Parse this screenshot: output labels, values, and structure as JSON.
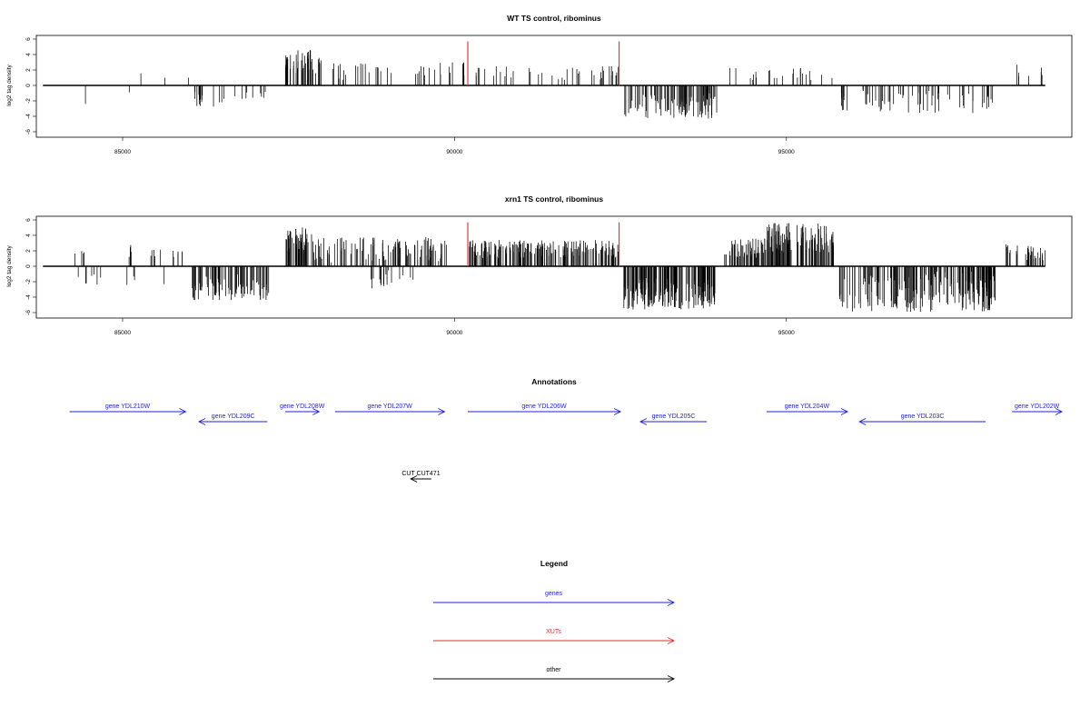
{
  "chart_data": [
    {
      "type": "bar",
      "title": "WT TS control, ribominus",
      "ylabel": "log2 tag density",
      "xlim": [
        83700,
        99300
      ],
      "ylim": [
        -6,
        6
      ],
      "xticks": [
        85000,
        90000,
        95000
      ],
      "yticks": [
        6,
        4,
        2,
        0,
        -2,
        -4,
        -6
      ],
      "grid": false,
      "baseline": {
        "from": 83800,
        "to": 98900
      },
      "highlight_lines": [
        {
          "x": 90200,
          "y": 5.7,
          "color": "#e32b2b"
        },
        {
          "x": 92480,
          "y": 5.7,
          "color": "#e32b2b"
        }
      ],
      "segments": [
        {
          "from": 84420,
          "to": 84460,
          "sign": -1,
          "density": 1,
          "amp": [
            2.4,
            2.4
          ]
        },
        {
          "from": 85080,
          "to": 85120,
          "sign": -1,
          "density": 1,
          "amp": [
            0.9,
            0.9
          ]
        },
        {
          "from": 85250,
          "to": 85300,
          "sign": 1,
          "density": 2,
          "amp": [
            1.2,
            2.4
          ]
        },
        {
          "from": 85620,
          "to": 85650,
          "sign": 1,
          "density": 1,
          "amp": [
            1.0,
            1.0
          ]
        },
        {
          "from": 85980,
          "to": 86000,
          "sign": 1,
          "density": 1,
          "amp": [
            1.0,
            1.0
          ]
        },
        {
          "from": 86080,
          "to": 86650,
          "sign": -1,
          "density": 0.028,
          "amp": [
            0.8,
            3.0
          ]
        },
        {
          "from": 86650,
          "to": 87200,
          "sign": -1,
          "density": 0.016,
          "amp": [
            0.6,
            1.8
          ]
        },
        {
          "from": 87450,
          "to": 87600,
          "sign": 1,
          "density": 0.09,
          "amp": [
            2.0,
            4.0
          ]
        },
        {
          "from": 87600,
          "to": 87850,
          "sign": 1,
          "density": 0.09,
          "amp": [
            1.5,
            4.6
          ]
        },
        {
          "from": 87850,
          "to": 88000,
          "sign": 1,
          "density": 0.06,
          "amp": [
            1.0,
            3.6
          ]
        },
        {
          "from": 88100,
          "to": 90150,
          "sign": 1,
          "density": 0.018,
          "amp": [
            0.6,
            3.0
          ]
        },
        {
          "from": 90100,
          "to": 90150,
          "sign": 1,
          "density": 1,
          "amp": [
            2.8,
            2.8
          ]
        },
        {
          "from": 90300,
          "to": 92300,
          "sign": 1,
          "density": 0.016,
          "amp": [
            0.6,
            2.5
          ]
        },
        {
          "from": 92300,
          "to": 92470,
          "sign": 1,
          "density": 0.04,
          "amp": [
            1.0,
            2.5
          ]
        },
        {
          "from": 92550,
          "to": 93950,
          "sign": -1,
          "density": 0.07,
          "amp": [
            1.0,
            4.3
          ]
        },
        {
          "from": 94050,
          "to": 95720,
          "sign": 1,
          "density": 0.014,
          "amp": [
            0.6,
            2.3
          ]
        },
        {
          "from": 95800,
          "to": 96400,
          "sign": -1,
          "density": 0.03,
          "amp": [
            0.6,
            3.3
          ]
        },
        {
          "from": 96400,
          "to": 98150,
          "sign": -1,
          "density": 0.026,
          "amp": [
            0.5,
            3.6
          ]
        },
        {
          "from": 98300,
          "to": 98900,
          "sign": 1,
          "density": 0.012,
          "amp": [
            1.0,
            2.8
          ]
        }
      ]
    },
    {
      "type": "bar",
      "title": "xrn1 TS control, ribominus",
      "ylabel": "log2 tag density",
      "xlim": [
        83700,
        99300
      ],
      "ylim": [
        -6,
        6
      ],
      "xticks": [
        85000,
        90000,
        95000
      ],
      "yticks": [
        6,
        4,
        2,
        0,
        -2,
        -4,
        -6
      ],
      "grid": false,
      "baseline": {
        "from": 83800,
        "to": 98900
      },
      "highlight_lines": [
        {
          "x": 90200,
          "y": 5.7,
          "color": "#e32b2b"
        },
        {
          "x": 92480,
          "y": 5.7,
          "color": "#e32b2b"
        }
      ],
      "segments": [
        {
          "from": 84250,
          "to": 84450,
          "sign": 1,
          "density": 0.02,
          "amp": [
            1.0,
            2.0
          ]
        },
        {
          "from": 84250,
          "to": 84700,
          "sign": -1,
          "density": 0.015,
          "amp": [
            0.6,
            2.4
          ]
        },
        {
          "from": 85050,
          "to": 85250,
          "sign": 1,
          "density": 0.02,
          "amp": [
            1.0,
            3.0
          ]
        },
        {
          "from": 85050,
          "to": 85250,
          "sign": -1,
          "density": 0.015,
          "amp": [
            0.8,
            2.6
          ]
        },
        {
          "from": 85350,
          "to": 85650,
          "sign": 1,
          "density": 0.015,
          "amp": [
            0.8,
            2.8
          ]
        },
        {
          "from": 85600,
          "to": 85650,
          "sign": -1,
          "density": 1,
          "amp": [
            2.3,
            2.3
          ]
        },
        {
          "from": 85750,
          "to": 85900,
          "sign": 1,
          "density": 0.04,
          "amp": [
            1.0,
            2.0
          ]
        },
        {
          "from": 86050,
          "to": 87200,
          "sign": -1,
          "density": 0.07,
          "amp": [
            1.0,
            4.4
          ]
        },
        {
          "from": 87450,
          "to": 87850,
          "sign": 1,
          "density": 0.12,
          "amp": [
            2.0,
            5.1
          ]
        },
        {
          "from": 87850,
          "to": 89900,
          "sign": 1,
          "density": 0.05,
          "amp": [
            0.5,
            3.8
          ]
        },
        {
          "from": 88600,
          "to": 89450,
          "sign": -1,
          "density": 0.02,
          "amp": [
            0.5,
            3.2
          ]
        },
        {
          "from": 90200,
          "to": 92470,
          "sign": 1,
          "density": 0.08,
          "amp": [
            1.0,
            3.4
          ]
        },
        {
          "from": 92550,
          "to": 93950,
          "sign": -1,
          "density": 0.12,
          "amp": [
            1.5,
            5.6
          ]
        },
        {
          "from": 94050,
          "to": 94700,
          "sign": 1,
          "density": 0.08,
          "amp": [
            1.0,
            3.6
          ]
        },
        {
          "from": 94700,
          "to": 95720,
          "sign": 1,
          "density": 0.1,
          "amp": [
            1.5,
            5.6
          ]
        },
        {
          "from": 95800,
          "to": 98150,
          "sign": -1,
          "density": 0.08,
          "amp": [
            0.6,
            5.9
          ]
        },
        {
          "from": 98300,
          "to": 98900,
          "sign": 1,
          "density": 0.05,
          "amp": [
            0.8,
            2.9
          ]
        }
      ]
    }
  ],
  "annotations": {
    "title": "Annotations",
    "genes": [
      {
        "label": "gene YDL210W",
        "from": 84200,
        "to": 85950,
        "strand": "+",
        "row": 0
      },
      {
        "label": "gene YDL209C",
        "from": 86150,
        "to": 87180,
        "strand": "-",
        "row": 1
      },
      {
        "label": "gene YDL208W",
        "from": 87450,
        "to": 87960,
        "strand": "+",
        "row": 0
      },
      {
        "label": "gene YDL207W",
        "from": 88200,
        "to": 89850,
        "strand": "+",
        "row": 0
      },
      {
        "label": "gene YDL206W",
        "from": 90200,
        "to": 92500,
        "strand": "+",
        "row": 0
      },
      {
        "label": "gene YDL205C",
        "from": 92800,
        "to": 93800,
        "strand": "-",
        "row": 1
      },
      {
        "label": "gene YDL204W",
        "from": 94700,
        "to": 95920,
        "strand": "+",
        "row": 0
      },
      {
        "label": "gene YDL203C",
        "from": 96100,
        "to": 98000,
        "strand": "-",
        "row": 1
      },
      {
        "label": "gene YDL202W",
        "from": 98400,
        "to": 99150,
        "strand": "+",
        "row": 0
      }
    ],
    "other": [
      {
        "label": "CUT CUT471",
        "from": 89340,
        "to": 89650,
        "strand": "-",
        "row": 2
      }
    ]
  },
  "legend": {
    "title": "Legend",
    "items": [
      {
        "label": "genes",
        "color": "#1f1fe0"
      },
      {
        "label": "XUTs",
        "color": "#e32b2b"
      },
      {
        "label": "other",
        "color": "#000000"
      }
    ]
  }
}
